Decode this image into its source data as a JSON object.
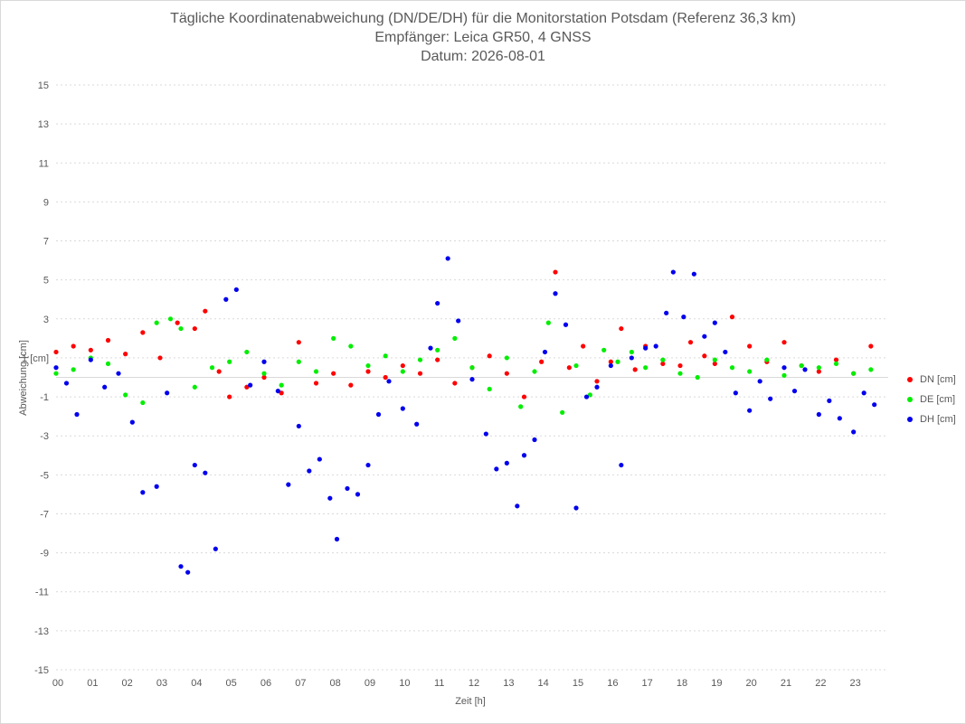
{
  "chart_data": {
    "type": "scatter",
    "title": "Tägliche Koordinatenabweichung (DN/DE/DH) für die Monitorstation Potsdam (Referenz 36,3 km)",
    "subtitle": "Empfänger: Leica GR50, 4 GNSS",
    "date_line": "Datum: 2026-08-01",
    "xlabel": "Zeit [h]",
    "ylabel": "Abweichung [cm]",
    "xlim": [
      0,
      24
    ],
    "ylim": [
      -15,
      15
    ],
    "x_ticks": [
      "00",
      "01",
      "02",
      "03",
      "04",
      "05",
      "06",
      "07",
      "08",
      "09",
      "10",
      "11",
      "12",
      "13",
      "14",
      "15",
      "16",
      "17",
      "18",
      "19",
      "20",
      "21",
      "22",
      "23"
    ],
    "y_ticks": [
      15,
      13,
      11,
      9,
      7,
      5,
      3,
      1,
      -1,
      -3,
      -5,
      -7,
      -9,
      -11,
      -13,
      -15
    ],
    "y_tick_labels": [
      "15",
      "13",
      "11",
      "9",
      "7",
      "5",
      "3",
      "1 [cm]",
      "-1",
      "-3",
      "-5",
      "-7",
      "-9",
      "-11",
      "-13",
      "-15"
    ],
    "grid": "horizontal dotted",
    "legend_position": "right",
    "series": [
      {
        "name": "DN [cm]",
        "color": "#ff0000",
        "x": [
          0.0,
          0.5,
          1.0,
          1.5,
          2.0,
          2.5,
          3.0,
          3.5,
          4.0,
          4.3,
          4.7,
          5.0,
          5.5,
          6.0,
          6.5,
          7.0,
          7.5,
          8.0,
          8.5,
          9.0,
          9.5,
          10.0,
          10.5,
          11.0,
          11.5,
          12.0,
          12.5,
          13.0,
          13.5,
          14.0,
          14.4,
          14.8,
          15.2,
          15.6,
          16.0,
          16.3,
          16.7,
          17.0,
          17.5,
          18.0,
          18.3,
          18.7,
          19.0,
          19.5,
          20.0,
          20.5,
          21.0,
          21.5,
          22.0,
          22.5,
          23.0,
          23.5
        ],
        "y": [
          1.3,
          1.6,
          1.4,
          1.9,
          1.2,
          2.3,
          1.0,
          2.8,
          2.5,
          3.4,
          0.3,
          -1.0,
          -0.5,
          0.0,
          -0.8,
          1.8,
          -0.3,
          0.2,
          -0.4,
          0.3,
          0.0,
          0.6,
          0.2,
          0.9,
          -0.3,
          0.5,
          1.1,
          0.2,
          -1.0,
          0.8,
          5.4,
          0.5,
          1.6,
          -0.2,
          0.8,
          2.5,
          0.4,
          1.6,
          0.7,
          0.6,
          1.8,
          1.1,
          0.7,
          3.1,
          1.6,
          0.8,
          1.8,
          0.6,
          0.3,
          0.9,
          0.2,
          1.6
        ]
      },
      {
        "name": "DE [cm]",
        "color": "#00ee00",
        "x": [
          0.0,
          0.5,
          1.0,
          1.5,
          2.0,
          2.5,
          2.9,
          3.3,
          3.6,
          4.0,
          4.5,
          5.0,
          5.5,
          6.0,
          6.5,
          7.0,
          7.5,
          8.0,
          8.5,
          9.0,
          9.5,
          10.0,
          10.5,
          11.0,
          11.5,
          12.0,
          12.5,
          13.0,
          13.4,
          13.8,
          14.2,
          14.6,
          15.0,
          15.4,
          15.8,
          16.2,
          16.6,
          17.0,
          17.5,
          18.0,
          18.5,
          19.0,
          19.5,
          20.0,
          20.5,
          21.0,
          21.5,
          22.0,
          22.5,
          23.0,
          23.5
        ],
        "y": [
          0.2,
          0.4,
          1.0,
          0.7,
          -0.9,
          -1.3,
          2.8,
          3.0,
          2.5,
          -0.5,
          0.5,
          0.8,
          1.3,
          0.2,
          -0.4,
          0.8,
          0.3,
          2.0,
          1.6,
          0.6,
          1.1,
          0.3,
          0.9,
          1.4,
          2.0,
          0.5,
          -0.6,
          1.0,
          -1.5,
          0.3,
          2.8,
          -1.8,
          0.6,
          -0.9,
          1.4,
          0.8,
          1.3,
          0.5,
          0.9,
          0.2,
          0.0,
          0.9,
          0.5,
          0.3,
          0.9,
          0.1,
          0.6,
          0.5,
          0.7,
          0.2,
          0.4
        ]
      },
      {
        "name": "DH [cm]",
        "color": "#0000ee",
        "x": [
          0.0,
          0.3,
          0.6,
          1.0,
          1.4,
          1.8,
          2.2,
          2.5,
          2.9,
          3.2,
          3.6,
          3.8,
          4.0,
          4.3,
          4.6,
          4.9,
          5.2,
          5.6,
          6.0,
          6.4,
          6.7,
          7.0,
          7.3,
          7.6,
          7.9,
          8.1,
          8.4,
          8.7,
          9.0,
          9.3,
          9.6,
          10.0,
          10.4,
          10.8,
          11.0,
          11.3,
          11.6,
          12.0,
          12.4,
          12.7,
          13.0,
          13.3,
          13.5,
          13.8,
          14.1,
          14.4,
          14.7,
          15.0,
          15.3,
          15.6,
          16.0,
          16.3,
          16.6,
          17.0,
          17.3,
          17.6,
          17.8,
          18.1,
          18.4,
          18.7,
          19.0,
          19.3,
          19.6,
          20.0,
          20.3,
          20.6,
          21.0,
          21.3,
          21.6,
          22.0,
          22.3,
          22.6,
          23.0,
          23.3,
          23.6
        ],
        "y": [
          0.5,
          -0.3,
          -1.9,
          0.9,
          -0.5,
          0.2,
          -2.3,
          -5.9,
          -5.6,
          -0.8,
          -9.7,
          -10.0,
          -4.5,
          -4.9,
          -8.8,
          4.0,
          4.5,
          -0.4,
          0.8,
          -0.7,
          -5.5,
          -2.5,
          -4.8,
          -4.2,
          -6.2,
          -8.3,
          -5.7,
          -6.0,
          -4.5,
          -1.9,
          -0.2,
          -1.6,
          -2.4,
          1.5,
          3.8,
          6.1,
          2.9,
          -0.1,
          -2.9,
          -4.7,
          -4.4,
          -6.6,
          -4.0,
          -3.2,
          1.3,
          4.3,
          2.7,
          -6.7,
          -1.0,
          -0.5,
          0.6,
          -4.5,
          1.0,
          1.5,
          1.6,
          3.3,
          5.4,
          3.1,
          5.3,
          2.1,
          2.8,
          1.3,
          -0.8,
          -1.7,
          -0.2,
          -1.1,
          0.5,
          -0.7,
          0.4,
          -1.9,
          -1.2,
          -2.1,
          -2.8,
          -0.8,
          -1.4
        ]
      }
    ]
  }
}
